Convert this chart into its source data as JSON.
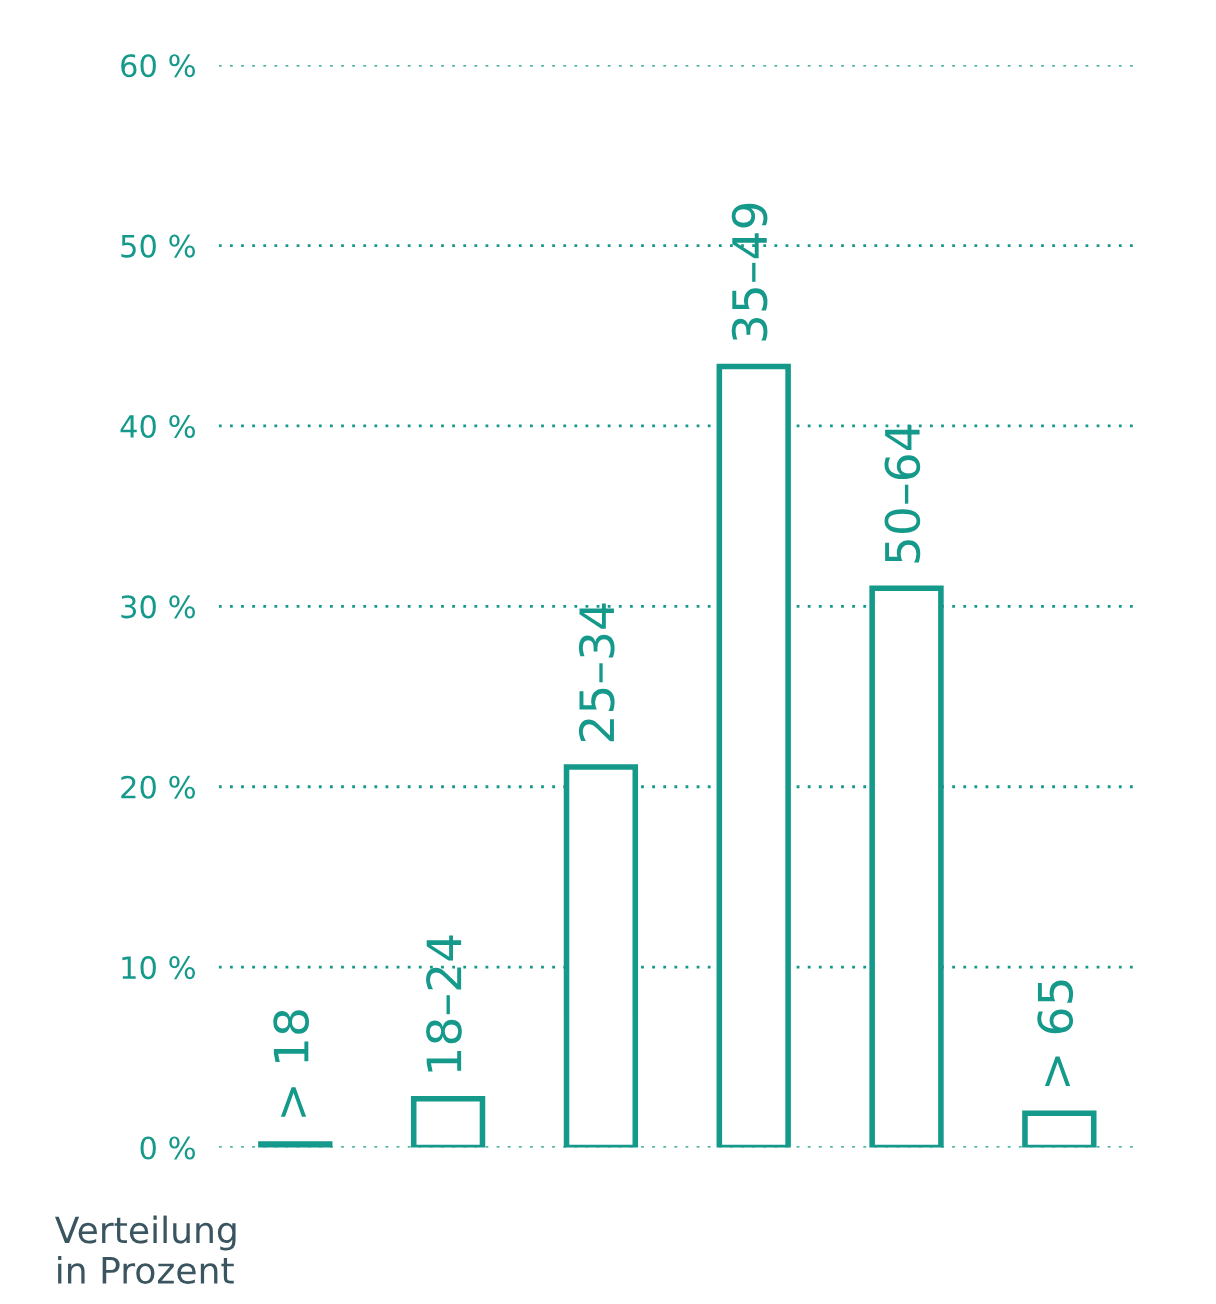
{
  "chart_data": {
    "type": "bar",
    "categories": [
      "> 18",
      "18–24",
      "25–34",
      "35–49",
      "50–64",
      "> 65"
    ],
    "values": [
      0.2,
      2.7,
      21.1,
      43.3,
      31.0,
      1.9
    ],
    "color": "#14998a",
    "ylim": [
      0,
      60
    ],
    "yticks": [
      {
        "value": 0,
        "label": "0 %"
      },
      {
        "value": 10,
        "label": "10 %"
      },
      {
        "value": 20,
        "label": "20 %"
      },
      {
        "value": 30,
        "label": "30 %"
      },
      {
        "value": 40,
        "label": "40 %"
      },
      {
        "value": 50,
        "label": "50 %"
      },
      {
        "value": 60,
        "label": "60 %"
      }
    ],
    "grid": "y",
    "annotations": [
      "Verteilung\nin Prozent"
    ]
  }
}
